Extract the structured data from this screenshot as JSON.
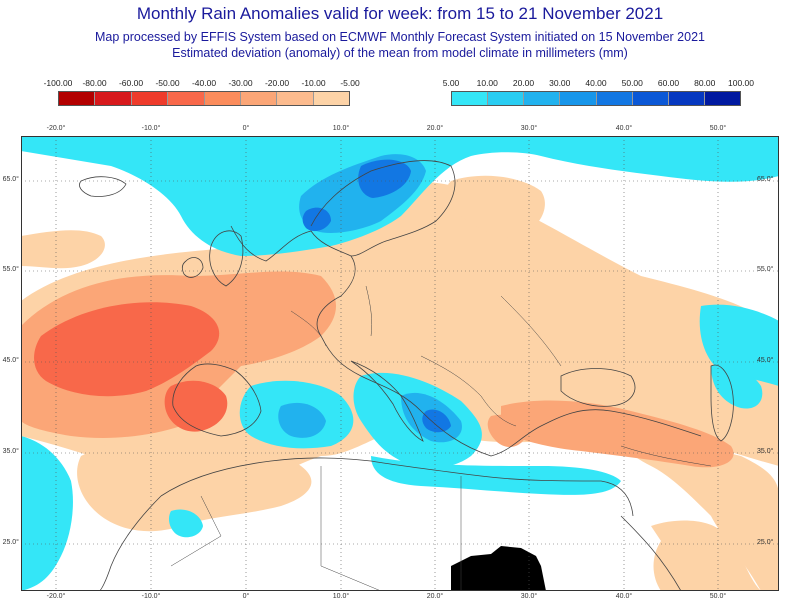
{
  "header": {
    "title": "Monthly Rain Anomalies valid for week: from 15 to 21 November 2021",
    "subtitle_1": "Map processed by EFFIS System based on ECMWF Monthly Forecast System initiated on 15 November 2021",
    "subtitle_2": "Estimated deviation (anomaly) of the mean from model climate in millimeters (mm)"
  },
  "legend_negative": {
    "labels": [
      "-100.00",
      "-80.00",
      "-60.00",
      "-50.00",
      "-40.00",
      "-30.00",
      "-20.00",
      "-10.00",
      "-5.00"
    ],
    "colors": [
      "#b30000",
      "#d7191c",
      "#ee3b2b",
      "#f8684a",
      "#fb8c5c",
      "#fba677",
      "#fcbb8e",
      "#fdd3a7"
    ]
  },
  "legend_positive": {
    "labels": [
      "5.00",
      "10.00",
      "20.00",
      "30.00",
      "40.00",
      "50.00",
      "60.00",
      "80.00",
      "100.00"
    ],
    "colors": [
      "#34e6f7",
      "#29cdf2",
      "#21b2ee",
      "#1896ea",
      "#1277e3",
      "#0b58d6",
      "#0638c0",
      "#0019a0"
    ]
  },
  "map": {
    "top_lon_labels": [
      "-20.0°",
      "-10.0°",
      "0°",
      "10.0°",
      "20.0°",
      "30.0°",
      "40.0°",
      "50.0°"
    ],
    "bottom_lon_labels": [
      "-20.0°",
      "-10.0°",
      "0°",
      "10.0°",
      "20.0°",
      "30.0°",
      "40.0°",
      "50.0°"
    ],
    "left_lat_labels": [
      "65.0°",
      "55.0°",
      "45.0°",
      "35.0°",
      "25.0°"
    ],
    "right_lat_labels": [
      "65.0°",
      "55.0°",
      "45.0°",
      "35.0°",
      "25.0°"
    ],
    "colors": {
      "dry_light": "#fdd3a7",
      "dry_mid": "#fba677",
      "dry_strong": "#f8684a",
      "wet_light": "#34e6f7",
      "wet_mid": "#21b2ee",
      "wet_strong": "#1277e3",
      "wet_max": "#0638c0",
      "coast": "#444444",
      "grid": "#555555",
      "nodata": "#000000"
    }
  }
}
